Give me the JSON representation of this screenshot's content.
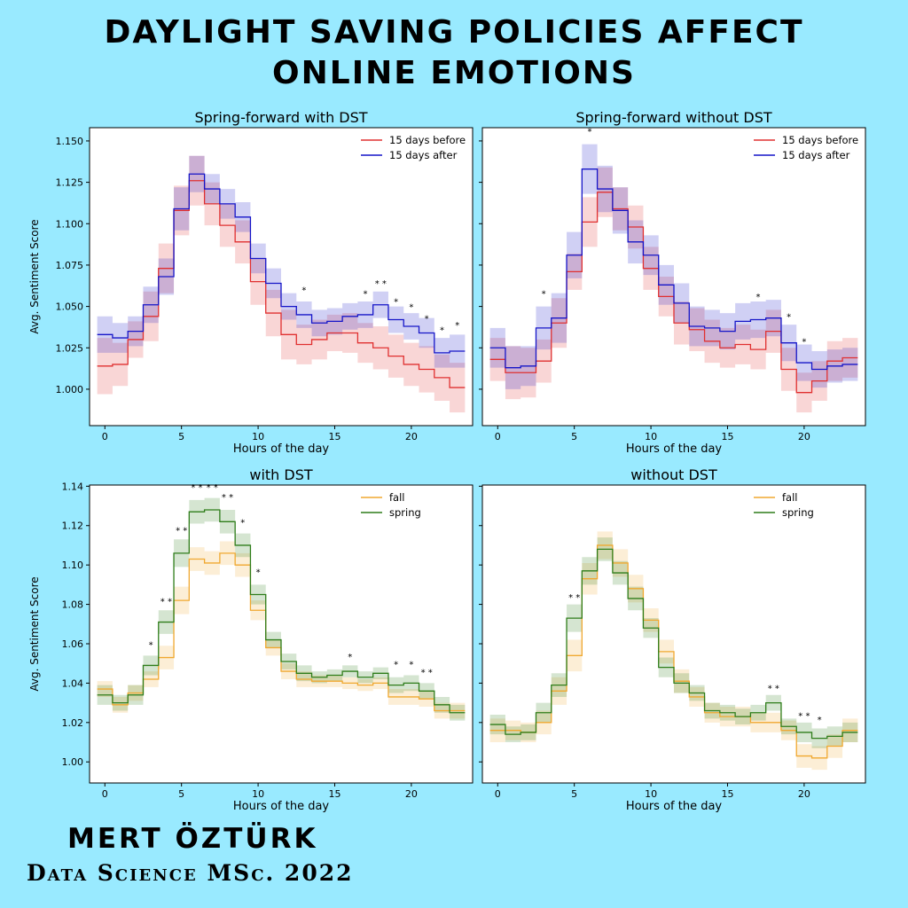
{
  "page": {
    "title_line1": "DAYLIGHT SAVING POLICIES AFFECT",
    "title_line2": "ONLINE EMOTIONS",
    "author": "MERT ÖZTÜRK",
    "degree": "Data Science MSc. 2022"
  },
  "chart_data": [
    {
      "type": "line",
      "title": "Spring-forward with DST",
      "xlabel": "Hours of the day",
      "ylabel": "Avg. Sentiment Score",
      "xlim": [
        -1,
        24
      ],
      "ylim": [
        0.978,
        1.158
      ],
      "xticks": [
        0,
        5,
        10,
        15,
        20
      ],
      "yticks": [
        1.0,
        1.025,
        1.05,
        1.075,
        1.1,
        1.125,
        1.15
      ],
      "ytick_decimals": 3,
      "legend": "top-right",
      "x": [
        0,
        1,
        2,
        3,
        4,
        5,
        6,
        7,
        8,
        9,
        10,
        11,
        12,
        13,
        14,
        15,
        16,
        17,
        18,
        19,
        20,
        21,
        22,
        23
      ],
      "series": [
        {
          "name": "15 days before",
          "color": "#e03030",
          "values": [
            1.014,
            1.015,
            1.03,
            1.044,
            1.073,
            1.108,
            1.126,
            1.112,
            1.099,
            1.089,
            1.065,
            1.046,
            1.033,
            1.027,
            1.03,
            1.034,
            1.034,
            1.028,
            1.025,
            1.02,
            1.015,
            1.012,
            1.007,
            1.001
          ],
          "band": [
            0.017,
            0.013,
            0.011,
            0.015,
            0.015,
            0.015,
            0.015,
            0.013,
            0.013,
            0.013,
            0.014,
            0.014,
            0.015,
            0.012,
            0.012,
            0.011,
            0.012,
            0.012,
            0.013,
            0.013,
            0.013,
            0.014,
            0.014,
            0.015
          ]
        },
        {
          "name": "15 days after",
          "color": "#1515c8",
          "values": [
            1.033,
            1.031,
            1.035,
            1.051,
            1.068,
            1.109,
            1.13,
            1.121,
            1.112,
            1.104,
            1.079,
            1.064,
            1.05,
            1.045,
            1.04,
            1.041,
            1.044,
            1.045,
            1.051,
            1.042,
            1.038,
            1.034,
            1.022,
            1.023
          ],
          "band": [
            0.011,
            0.009,
            0.009,
            0.011,
            0.011,
            0.013,
            0.011,
            0.009,
            0.009,
            0.009,
            0.009,
            0.009,
            0.008,
            0.008,
            0.008,
            0.008,
            0.008,
            0.008,
            0.008,
            0.008,
            0.008,
            0.009,
            0.009,
            0.01
          ]
        }
      ],
      "stars": [
        {
          "x": 1,
          "label": "*"
        },
        {
          "x": 13,
          "label": "*"
        },
        {
          "x": 17,
          "label": "*"
        },
        {
          "x": 18,
          "label": "* *"
        },
        {
          "x": 19,
          "label": "*"
        },
        {
          "x": 20,
          "label": "*"
        },
        {
          "x": 21,
          "label": "*"
        },
        {
          "x": 22,
          "label": "*"
        },
        {
          "x": 23,
          "label": "*"
        }
      ],
      "star_y": [
        1.043,
        null,
        null,
        null,
        null,
        null,
        null,
        null,
        null,
        null,
        null,
        null,
        null,
        1.058,
        null,
        null,
        null,
        1.056,
        1.062,
        1.051,
        1.048,
        1.041,
        1.034,
        1.037
      ]
    },
    {
      "type": "line",
      "title": "Spring-forward without DST",
      "xlabel": "Hours of the day",
      "ylabel": "",
      "xlim": [
        -1,
        24
      ],
      "ylim": [
        0.978,
        1.158
      ],
      "xticks": [
        0,
        5,
        10,
        15,
        20
      ],
      "yticks": [
        1.0,
        1.025,
        1.05,
        1.075,
        1.1,
        1.125,
        1.15
      ],
      "ytick_decimals": 3,
      "show_ytick_labels": false,
      "legend": "top-right",
      "x": [
        0,
        1,
        2,
        3,
        4,
        5,
        6,
        7,
        8,
        9,
        10,
        11,
        12,
        13,
        14,
        15,
        16,
        17,
        18,
        19,
        20,
        21,
        22,
        23
      ],
      "series": [
        {
          "name": "15 days before",
          "color": "#e03030",
          "values": [
            1.018,
            1.01,
            1.01,
            1.017,
            1.04,
            1.071,
            1.101,
            1.119,
            1.109,
            1.098,
            1.073,
            1.056,
            1.04,
            1.036,
            1.029,
            1.025,
            1.027,
            1.024,
            1.035,
            1.012,
            0.998,
            1.005,
            1.017,
            1.019
          ],
          "band": [
            0.013,
            0.016,
            0.015,
            0.013,
            0.015,
            0.011,
            0.015,
            0.015,
            0.013,
            0.013,
            0.013,
            0.012,
            0.013,
            0.013,
            0.013,
            0.012,
            0.012,
            0.012,
            0.013,
            0.013,
            0.012,
            0.012,
            0.012,
            0.012
          ]
        },
        {
          "name": "15 days after",
          "color": "#1515c8",
          "values": [
            1.025,
            1.013,
            1.014,
            1.037,
            1.043,
            1.081,
            1.133,
            1.121,
            1.108,
            1.089,
            1.081,
            1.063,
            1.052,
            1.038,
            1.037,
            1.035,
            1.041,
            1.042,
            1.043,
            1.028,
            1.016,
            1.012,
            1.014,
            1.015
          ],
          "band": [
            0.012,
            0.013,
            0.012,
            0.013,
            0.015,
            0.014,
            0.015,
            0.014,
            0.014,
            0.013,
            0.012,
            0.012,
            0.012,
            0.012,
            0.011,
            0.011,
            0.011,
            0.011,
            0.011,
            0.011,
            0.011,
            0.011,
            0.01,
            0.01
          ]
        }
      ],
      "stars": [
        {
          "x": 3,
          "label": "*"
        },
        {
          "x": 6,
          "label": "*"
        },
        {
          "x": 17,
          "label": "*"
        },
        {
          "x": 19,
          "label": "*"
        },
        {
          "x": 20,
          "label": "*"
        }
      ],
      "star_y": [
        null,
        null,
        null,
        1.056,
        null,
        null,
        1.154,
        null,
        null,
        null,
        null,
        null,
        null,
        null,
        null,
        null,
        null,
        1.054,
        null,
        1.042,
        1.027,
        null,
        null,
        null
      ]
    },
    {
      "type": "line",
      "title": "with DST",
      "xlabel": "Hours of the day",
      "ylabel": "Avg. Sentiment Score",
      "xlim": [
        -1,
        24
      ],
      "ylim": [
        0.9893,
        1.1406
      ],
      "xticks": [
        0,
        5,
        10,
        15,
        20
      ],
      "yticks": [
        1.0,
        1.02,
        1.04,
        1.06,
        1.08,
        1.1,
        1.12,
        1.14
      ],
      "ytick_decimals": 2,
      "legend": "top-right",
      "x": [
        0,
        1,
        2,
        3,
        4,
        5,
        6,
        7,
        8,
        9,
        10,
        11,
        12,
        13,
        14,
        15,
        16,
        17,
        18,
        19,
        20,
        21,
        22,
        23
      ],
      "series": [
        {
          "name": "fall",
          "color": "#f0a830",
          "values": [
            1.037,
            1.029,
            1.035,
            1.042,
            1.053,
            1.082,
            1.103,
            1.101,
            1.106,
            1.1,
            1.077,
            1.058,
            1.046,
            1.042,
            1.041,
            1.041,
            1.04,
            1.039,
            1.04,
            1.033,
            1.033,
            1.032,
            1.026,
            1.026
          ],
          "band": [
            0.004,
            0.004,
            0.004,
            0.004,
            0.006,
            0.007,
            0.006,
            0.006,
            0.006,
            0.006,
            0.005,
            0.004,
            0.004,
            0.004,
            0.003,
            0.003,
            0.003,
            0.003,
            0.003,
            0.004,
            0.004,
            0.004,
            0.004,
            0.004
          ]
        },
        {
          "name": "spring",
          "color": "#2e7d1a",
          "values": [
            1.034,
            1.03,
            1.034,
            1.049,
            1.071,
            1.106,
            1.127,
            1.128,
            1.122,
            1.11,
            1.085,
            1.062,
            1.051,
            1.045,
            1.043,
            1.044,
            1.046,
            1.043,
            1.045,
            1.039,
            1.04,
            1.036,
            1.029,
            1.025
          ],
          "band": [
            0.005,
            0.004,
            0.005,
            0.005,
            0.006,
            0.007,
            0.006,
            0.006,
            0.006,
            0.006,
            0.005,
            0.004,
            0.004,
            0.004,
            0.003,
            0.003,
            0.003,
            0.003,
            0.003,
            0.004,
            0.004,
            0.004,
            0.004,
            0.004
          ]
        }
      ],
      "stars": [
        {
          "x": 3,
          "label": "*"
        },
        {
          "x": 4,
          "label": "* *"
        },
        {
          "x": 5,
          "label": "* *"
        },
        {
          "x": 6,
          "label": "* *"
        },
        {
          "x": 7,
          "label": "* *"
        },
        {
          "x": 8,
          "label": "* *"
        },
        {
          "x": 9,
          "label": "*"
        },
        {
          "x": 10,
          "label": "*"
        },
        {
          "x": 16,
          "label": "*"
        },
        {
          "x": 19,
          "label": "*"
        },
        {
          "x": 20,
          "label": "*"
        },
        {
          "x": 21,
          "label": "* *"
        }
      ],
      "star_y": [
        null,
        null,
        null,
        1.058,
        1.08,
        1.116,
        1.138,
        1.138,
        1.133,
        1.12,
        1.095,
        null,
        null,
        null,
        null,
        null,
        1.052,
        null,
        null,
        1.048,
        1.048,
        1.044,
        null,
        null
      ]
    },
    {
      "type": "line",
      "title": "without DST",
      "xlabel": "Hours of the day",
      "ylabel": "",
      "xlim": [
        -1,
        24
      ],
      "ylim": [
        0.9893,
        1.1406
      ],
      "xticks": [
        0,
        5,
        10,
        15,
        20
      ],
      "yticks": [
        1.0,
        1.02,
        1.04,
        1.06,
        1.08,
        1.1,
        1.12,
        1.14
      ],
      "ytick_decimals": 2,
      "show_ytick_labels": false,
      "legend": "top-right",
      "x": [
        0,
        1,
        2,
        3,
        4,
        5,
        6,
        7,
        8,
        9,
        10,
        11,
        12,
        13,
        14,
        15,
        16,
        17,
        18,
        19,
        20,
        21,
        22,
        23
      ],
      "series": [
        {
          "name": "fall",
          "color": "#f0a830",
          "values": [
            1.016,
            1.016,
            1.015,
            1.02,
            1.036,
            1.054,
            1.093,
            1.11,
            1.101,
            1.088,
            1.072,
            1.056,
            1.041,
            1.033,
            1.025,
            1.023,
            1.023,
            1.02,
            1.02,
            1.016,
            1.003,
            1.002,
            1.008,
            1.016
          ],
          "band": [
            0.006,
            0.005,
            0.005,
            0.006,
            0.007,
            0.008,
            0.008,
            0.007,
            0.007,
            0.007,
            0.006,
            0.006,
            0.006,
            0.005,
            0.005,
            0.005,
            0.005,
            0.005,
            0.005,
            0.005,
            0.006,
            0.006,
            0.006,
            0.006
          ]
        },
        {
          "name": "spring",
          "color": "#2e7d1a",
          "values": [
            1.019,
            1.014,
            1.015,
            1.025,
            1.039,
            1.073,
            1.097,
            1.108,
            1.096,
            1.083,
            1.068,
            1.048,
            1.04,
            1.035,
            1.026,
            1.025,
            1.023,
            1.025,
            1.03,
            1.018,
            1.015,
            1.012,
            1.013,
            1.015
          ],
          "band": [
            0.005,
            0.004,
            0.004,
            0.005,
            0.006,
            0.007,
            0.007,
            0.006,
            0.006,
            0.006,
            0.005,
            0.005,
            0.005,
            0.004,
            0.004,
            0.004,
            0.004,
            0.004,
            0.004,
            0.004,
            0.005,
            0.005,
            0.005,
            0.005
          ]
        }
      ],
      "stars": [
        {
          "x": 5,
          "label": "* *"
        },
        {
          "x": 18,
          "label": "* *"
        },
        {
          "x": 20,
          "label": "* *"
        },
        {
          "x": 21,
          "label": "*"
        }
      ],
      "star_y": [
        null,
        null,
        null,
        null,
        null,
        1.082,
        null,
        null,
        null,
        null,
        null,
        null,
        null,
        null,
        null,
        null,
        null,
        null,
        1.036,
        null,
        1.022,
        1.02,
        null,
        null
      ]
    }
  ]
}
